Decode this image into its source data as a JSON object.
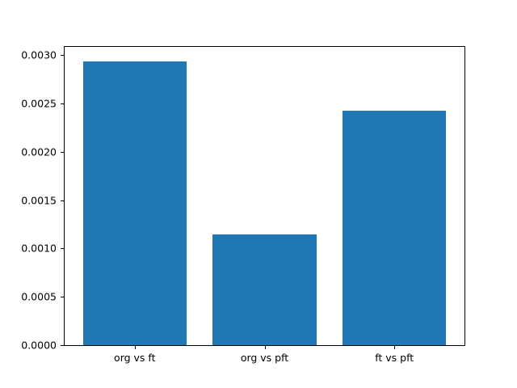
{
  "chart_data": {
    "type": "bar",
    "title": "",
    "xlabel": "",
    "ylabel": "",
    "categories": [
      "org vs ft",
      "org vs pft",
      "ft vs pft"
    ],
    "values": [
      0.00294,
      0.00115,
      0.00243
    ],
    "bar_positions": [
      0,
      1,
      2
    ],
    "bar_width": 0.8,
    "bar_color": "#1f77b4",
    "axis_color": "#000000",
    "background_color": "#ffffff",
    "grid": false,
    "legend": null,
    "ylim": [
      0,
      0.003087
    ],
    "xlim": [
      -0.54,
      2.54
    ],
    "yticks": [
      {
        "value": 0.0,
        "label": "0.0000"
      },
      {
        "value": 0.0005,
        "label": "0.0005"
      },
      {
        "value": 0.001,
        "label": "0.0010"
      },
      {
        "value": 0.0015,
        "label": "0.0015"
      },
      {
        "value": 0.002,
        "label": "0.0020"
      },
      {
        "value": 0.0025,
        "label": "0.0025"
      },
      {
        "value": 0.003,
        "label": "0.0030"
      }
    ]
  }
}
